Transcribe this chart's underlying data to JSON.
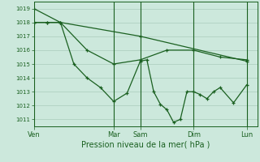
{
  "background_color": "#cce8dc",
  "grid_color": "#aaccbb",
  "line_color": "#1a6020",
  "ylabel_values": [
    1011,
    1012,
    1013,
    1014,
    1015,
    1016,
    1017,
    1018,
    1019
  ],
  "ylim": [
    1010.5,
    1019.5
  ],
  "xlabel": "Pression niveau de la mer( hPa )",
  "day_labels": [
    "Ven",
    "Mar",
    "Sam",
    "Dim",
    "Lun"
  ],
  "day_positions": [
    0.0,
    0.375,
    0.5,
    0.75,
    1.0
  ],
  "xlim": [
    0.0,
    1.05
  ],
  "series1_x": [
    0.0,
    0.125,
    0.5,
    1.0
  ],
  "series1_y": [
    1019.0,
    1018.0,
    1017.0,
    1015.2
  ],
  "series2_x": [
    0.0,
    0.063,
    0.125,
    0.25,
    0.375,
    0.5,
    0.625,
    0.75,
    0.875,
    1.0
  ],
  "series2_y": [
    1018.0,
    1018.0,
    1018.0,
    1016.0,
    1015.0,
    1015.3,
    1016.0,
    1016.0,
    1015.5,
    1015.3
  ],
  "series3_x": [
    0.0,
    0.063,
    0.125,
    0.188,
    0.25,
    0.313,
    0.375,
    0.438,
    0.5,
    0.531,
    0.563,
    0.594,
    0.625,
    0.656,
    0.688,
    0.719,
    0.75,
    0.781,
    0.813,
    0.844,
    0.875,
    0.938,
    1.0
  ],
  "series3_y": [
    1018.0,
    1018.0,
    1018.0,
    1015.0,
    1014.0,
    1013.3,
    1012.3,
    1012.9,
    1015.2,
    1015.3,
    1013.0,
    1012.1,
    1011.7,
    1010.8,
    1011.0,
    1013.0,
    1013.0,
    1012.8,
    1012.5,
    1013.0,
    1013.3,
    1012.2,
    1013.5
  ]
}
